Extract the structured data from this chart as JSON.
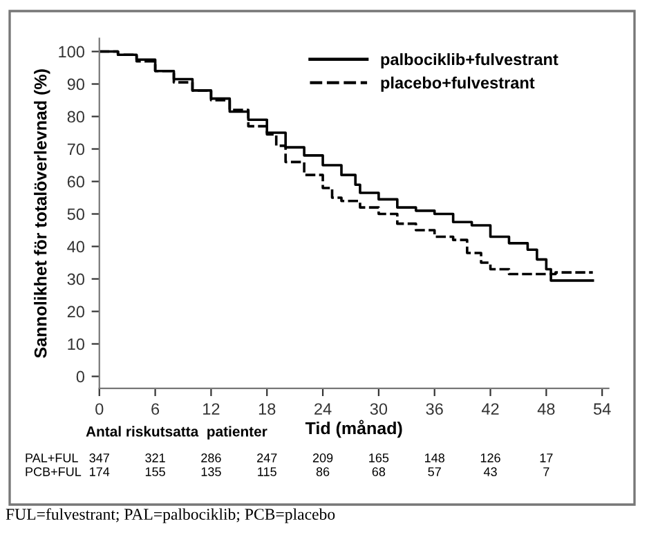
{
  "chart_data": {
    "type": "step",
    "xlabel": "Tid (månad)",
    "ylabel": "Sannolikhet för totalöverlevnad (%)",
    "xlim": [
      0,
      54.7
    ],
    "xticks": [
      0,
      6,
      12,
      18,
      24,
      30,
      36,
      42,
      48,
      54
    ],
    "ylim": [
      -3.7,
      104
    ],
    "yticks": [
      0,
      10,
      20,
      30,
      40,
      50,
      60,
      70,
      80,
      90,
      100
    ],
    "legend": "top right",
    "grid": false,
    "series": [
      {
        "name": "palbociklib+fulvestrant",
        "color": "#000000",
        "line_style": "solid",
        "x": [
          0,
          2,
          4,
          6,
          8,
          10,
          12,
          14,
          16,
          18,
          20,
          22,
          24,
          26,
          27.5,
          28,
          30,
          32,
          34,
          36,
          38,
          40,
          42,
          44,
          46,
          47,
          48,
          48.5,
          53
        ],
        "values": [
          100,
          99,
          97.5,
          94,
          91.5,
          88,
          85.5,
          81.5,
          79,
          75,
          70.5,
          68,
          65,
          62,
          59,
          56.5,
          54.5,
          52,
          51,
          50,
          47.5,
          46.5,
          43,
          41,
          39,
          36,
          33,
          29.5,
          29.5
        ]
      },
      {
        "name": "placebo+fulvestrant",
        "color": "#000000",
        "line_style": "dashed",
        "x": [
          0,
          2,
          4,
          6,
          8,
          10,
          12,
          14,
          16,
          18,
          19,
          20,
          22,
          24,
          25,
          26,
          28,
          30,
          32,
          34,
          36,
          38,
          39.5,
          41,
          42,
          44,
          47,
          49,
          53
        ],
        "values": [
          100,
          99,
          97,
          94,
          90.5,
          88,
          85,
          82,
          77,
          74.5,
          71,
          66,
          62,
          58,
          55,
          54,
          52,
          50,
          47,
          45,
          43,
          42,
          38,
          35,
          33,
          31.5,
          31.5,
          32,
          32
        ]
      }
    ],
    "annotations": [
      "Antal riskutsatta  patienter",
      "PAL+FUL 347 321 286 247 209 165 148 126 17",
      "PCB+FUL 174 155 135 115 86 68 57 43 7",
      "FUL=fulvestrant; PAL=palbociklib; PCB=placebo"
    ]
  }
}
